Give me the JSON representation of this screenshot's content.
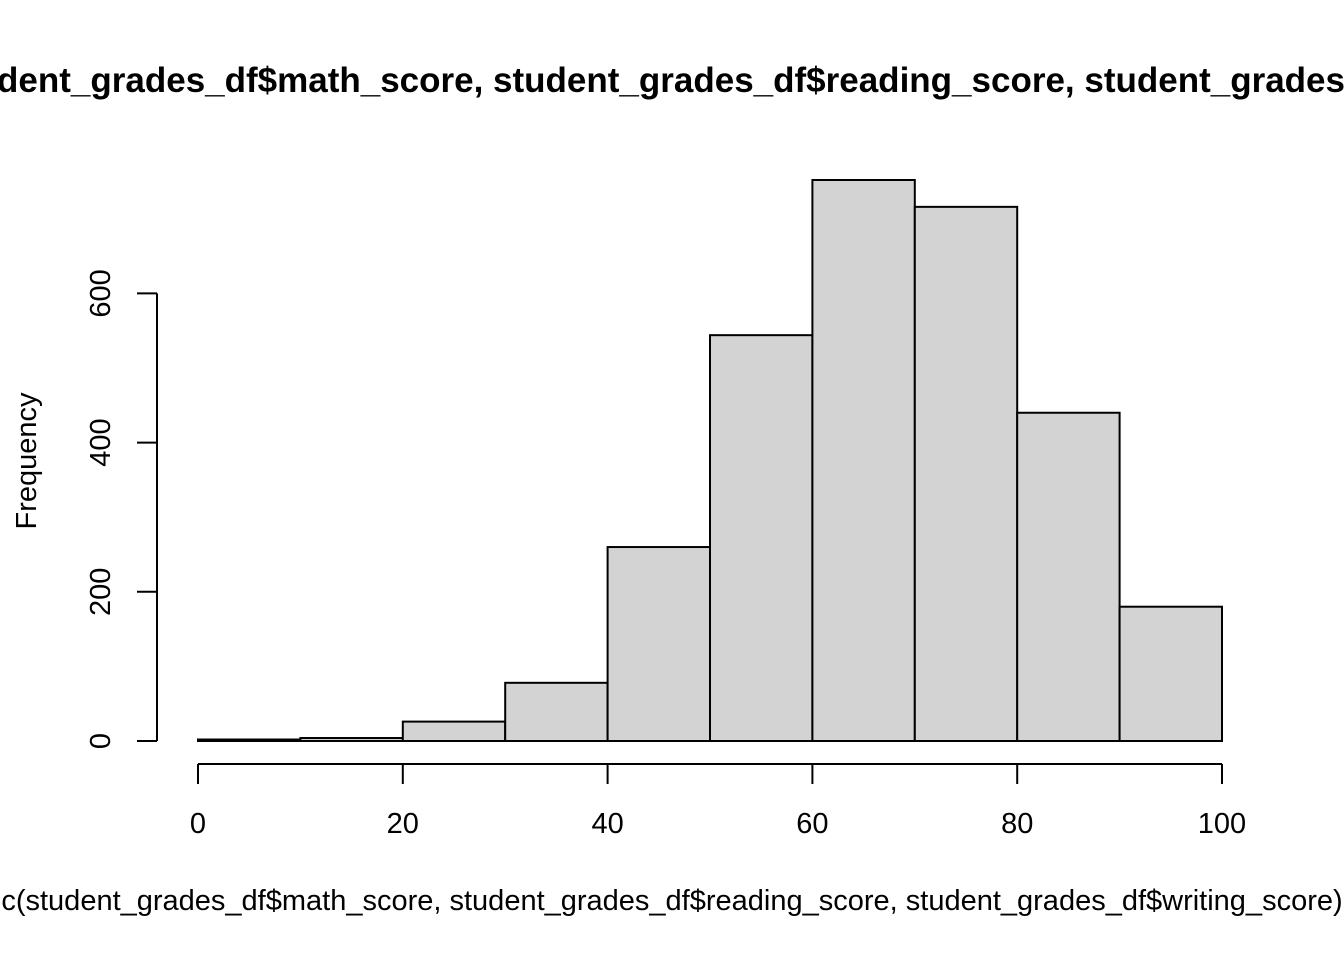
{
  "chart_data": {
    "type": "bar",
    "title": "Histogram of c(student_grades_df$math_score, student_grades_df$reading_score, student_grades_df$writing_score)",
    "xlabel": "c(student_grades_df$math_score, student_grades_df$reading_score, student_grades_df$writing_score)",
    "ylabel": "Frequency",
    "bins": [
      {
        "from": 0,
        "to": 10,
        "value": 2
      },
      {
        "from": 10,
        "to": 20,
        "value": 4
      },
      {
        "from": 20,
        "to": 30,
        "value": 26
      },
      {
        "from": 30,
        "to": 40,
        "value": 78
      },
      {
        "from": 40,
        "to": 50,
        "value": 260
      },
      {
        "from": 50,
        "to": 60,
        "value": 544
      },
      {
        "from": 60,
        "to": 70,
        "value": 752
      },
      {
        "from": 70,
        "to": 80,
        "value": 716
      },
      {
        "from": 80,
        "to": 90,
        "value": 440
      },
      {
        "from": 90,
        "to": 100,
        "value": 180
      }
    ],
    "x_ticks": [
      "0",
      "20",
      "40",
      "60",
      "80",
      "100"
    ],
    "y_ticks": [
      "0",
      "200",
      "400",
      "600"
    ],
    "xlim": [
      0,
      100
    ],
    "ylim": [
      0,
      752
    ],
    "grid": false,
    "bar_color": "#d3d3d3"
  }
}
